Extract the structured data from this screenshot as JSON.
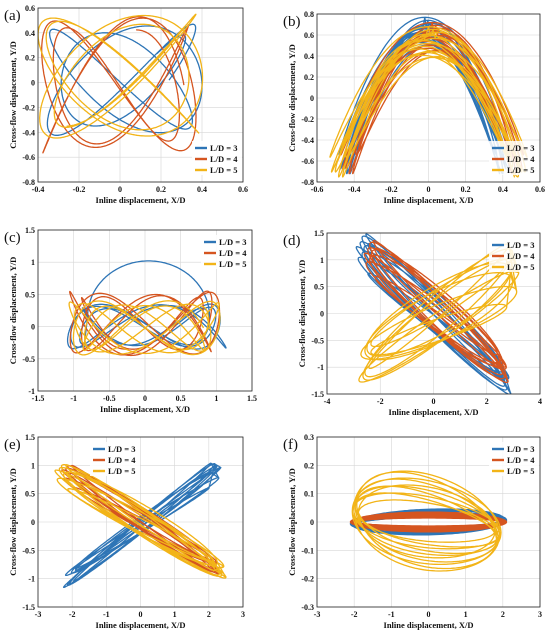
{
  "colors": {
    "L3": "#2E75B6",
    "L4": "#D55520",
    "L5": "#F2B418"
  },
  "chart_data": [
    {
      "type": "line",
      "panel": "(a)",
      "xlabel": "Inline displacement, X/D",
      "ylabel": "Cross-flow displacement, Y/D",
      "xlim": [
        -0.4,
        0.6
      ],
      "ylim": [
        -0.8,
        0.6
      ],
      "xticks": [
        "-0.4",
        "-0.2",
        "0",
        "0.2",
        "0.4",
        "0.6"
      ],
      "yticks": [
        "-0.8",
        "-0.6",
        "-0.4",
        "-0.2",
        "0",
        "0.2",
        "0.4",
        "0.6"
      ],
      "grid": true,
      "legend": "bottom-right",
      "series": [
        {
          "name": "L/D = 3",
          "shape": "lissajous",
          "ax": 0.34,
          "ay": 0.45,
          "cx": 0.02,
          "cy": 0.02,
          "fx": 3,
          "fy": 4,
          "ph": 0.7,
          "turns": 2.2
        },
        {
          "name": "L/D = 4",
          "shape": "lissajous",
          "ax": 0.34,
          "ay": 0.55,
          "cx": -0.01,
          "cy": -0.02,
          "fx": 3,
          "fy": 5,
          "ph": 1.9,
          "turns": 2.1
        },
        {
          "name": "L/D = 5",
          "shape": "lissajous",
          "ax": 0.36,
          "ay": 0.5,
          "cx": 0.0,
          "cy": 0.05,
          "fx": 4,
          "fy": 5,
          "ph": 0.3,
          "turns": 2.3
        }
      ]
    },
    {
      "type": "line",
      "panel": "(b)",
      "xlabel": "Inline displacement, X/D",
      "ylabel": "Cross-flow displacement, Y/D",
      "xlim": [
        -0.6,
        0.6
      ],
      "ylim": [
        -0.8,
        0.8
      ],
      "xticks": [
        "-0.6",
        "-0.4",
        "-0.2",
        "0",
        "0.2",
        "0.4",
        "0.6"
      ],
      "yticks": [
        "-0.8",
        "-0.6",
        "-0.4",
        "-0.2",
        "0",
        "0.2",
        "0.4",
        "0.6",
        "0.8"
      ],
      "grid": true,
      "legend": "bottom-right",
      "series": [
        {
          "name": "L/D = 3",
          "shape": "arch",
          "ax": 0.47,
          "hi": 0.78,
          "lo": -0.72,
          "w": 0.22,
          "cx": -0.02,
          "turns": 8
        },
        {
          "name": "L/D = 4",
          "shape": "arch",
          "ax": 0.5,
          "hi": 0.72,
          "lo": -0.72,
          "w": 0.25,
          "cx": 0.02,
          "turns": 8
        },
        {
          "name": "L/D = 5",
          "shape": "arch",
          "ax": 0.54,
          "hi": 0.66,
          "lo": -0.75,
          "w": 0.32,
          "cx": 0.0,
          "turns": 8
        }
      ]
    },
    {
      "type": "line",
      "panel": "(c)",
      "xlabel": "Inline displacement, X/D",
      "ylabel": "Cross-flow displacement, Y/D",
      "xlim": [
        -1.5,
        1.5
      ],
      "ylim": [
        -1,
        1.5
      ],
      "xticks": [
        "-1.5",
        "-1",
        "-0.5",
        "0",
        "0.5",
        "1",
        "1.5"
      ],
      "yticks": [
        "-1",
        "-0.5",
        "0",
        "0.5",
        "1",
        "1.5"
      ],
      "grid": true,
      "legend": "top-right",
      "series": [
        {
          "name": "L/D = 3",
          "shape": "lissajous",
          "ax": 1.0,
          "ay": 0.35,
          "cx": 0.02,
          "cy": 0.0,
          "fx": 3,
          "fy": 7,
          "ph": 0.4,
          "turns": 2.5,
          "hump": 1.02
        },
        {
          "name": "L/D = 4",
          "shape": "lissajous",
          "ax": 0.95,
          "ay": 0.5,
          "cx": -0.02,
          "cy": 0.05,
          "fx": 3,
          "fy": 7,
          "ph": 1.3,
          "turns": 2.5
        },
        {
          "name": "L/D = 5",
          "shape": "lissajous",
          "ax": 0.95,
          "ay": 0.42,
          "cx": 0.0,
          "cy": -0.02,
          "fx": 4,
          "fy": 9,
          "ph": 2.1,
          "turns": 2.5
        }
      ]
    },
    {
      "type": "line",
      "panel": "(d)",
      "xlabel": "Inline displacement, X/D",
      "ylabel": "Cross-flow displacement, Y/D",
      "xlim": [
        -4,
        4
      ],
      "ylim": [
        -1.5,
        1.5
      ],
      "xticks": [
        "-4",
        "-2",
        "0",
        "2",
        "4"
      ],
      "yticks": [
        "-1.5",
        "-1",
        "-0.5",
        "0",
        "0.5",
        "1",
        "1.5"
      ],
      "grid": true,
      "legend": "top-right",
      "series": [
        {
          "name": "L/D = 3",
          "shape": "tilted",
          "L": 2.9,
          "slope": -0.45,
          "ay": 0.25,
          "cx": 0.0,
          "cy": 0.0,
          "spread": 0.35,
          "turns": 9
        },
        {
          "name": "L/D = 4",
          "shape": "tilted",
          "L": 2.7,
          "slope": -0.42,
          "ay": 0.28,
          "cx": 0.1,
          "cy": 0.05,
          "spread": 0.35,
          "turns": 9
        },
        {
          "name": "L/D = 5",
          "shape": "fan",
          "L": 3.0,
          "slope": 0.3,
          "ay": 0.35,
          "cx": 0.2,
          "cy": -0.05,
          "spread": 0.5,
          "turns": 9
        }
      ]
    },
    {
      "type": "line",
      "panel": "(e)",
      "xlabel": "Inline displacement, X/D",
      "ylabel": "Cross-flow displacement, Y/D",
      "xlim": [
        -3,
        3
      ],
      "ylim": [
        -1.5,
        1.5
      ],
      "xticks": [
        "-3",
        "-2",
        "-1",
        "0",
        "1",
        "2",
        "3"
      ],
      "yticks": [
        "-1.5",
        "-1",
        "-0.5",
        "0",
        "0.5",
        "1",
        "1.5"
      ],
      "grid": true,
      "legend": "top-left",
      "series": [
        {
          "name": "L/D = 3",
          "shape": "tilted",
          "L": 2.3,
          "slope": 0.44,
          "ay": 0.1,
          "cx": 0.05,
          "cy": -0.05,
          "spread": 0.12,
          "turns": 8
        },
        {
          "name": "L/D = 4",
          "shape": "tilted",
          "L": 2.3,
          "slope": -0.38,
          "ay": 0.14,
          "cx": 0.0,
          "cy": 0.05,
          "spread": 0.12,
          "turns": 8
        },
        {
          "name": "L/D = 5",
          "shape": "tilted",
          "L": 2.5,
          "slope": -0.36,
          "ay": 0.2,
          "cx": 0.0,
          "cy": 0.02,
          "spread": 0.15,
          "turns": 8
        }
      ]
    },
    {
      "type": "line",
      "panel": "(f)",
      "xlabel": "Inline displacement, X/D",
      "ylabel": "Cross-flow displacement, Y/D",
      "xlim": [
        -3,
        3
      ],
      "ylim": [
        -0.3,
        0.3
      ],
      "xticks": [
        "-3",
        "-2",
        "-1",
        "0",
        "1",
        "2",
        "3"
      ],
      "yticks": [
        "-0.3",
        "-0.2",
        "-0.1",
        "0",
        "0.1",
        "0.2",
        "0.3"
      ],
      "grid": true,
      "legend": "top-right",
      "series": [
        {
          "name": "L/D = 3",
          "shape": "cylinder",
          "ax": 2.1,
          "ay": 0.045,
          "cx": 0.0,
          "cy": 0.0,
          "slope": 0.005,
          "turns": 10
        },
        {
          "name": "L/D = 4",
          "shape": "cylinder",
          "ax": 2.1,
          "ay": 0.035,
          "cx": 0.0,
          "cy": 0.0,
          "slope": 0.0,
          "turns": 10
        },
        {
          "name": "L/D = 5",
          "shape": "cylinder",
          "ax": 2.0,
          "ay": 0.17,
          "cx": -0.05,
          "cy": 0.0,
          "slope": -0.03,
          "turns": 10
        }
      ]
    }
  ]
}
